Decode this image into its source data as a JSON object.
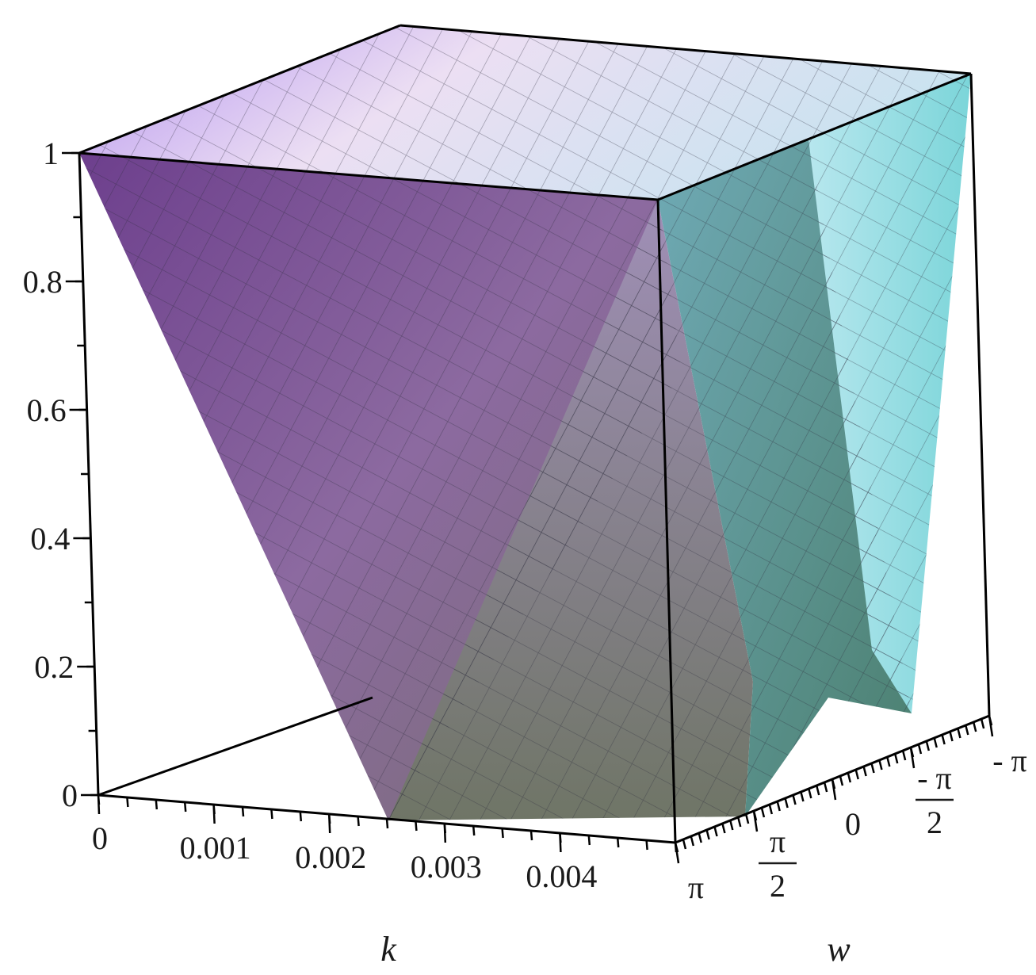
{
  "chart_data": {
    "type": "surface3d",
    "title": "",
    "xlabel": "k",
    "ylabel": "w",
    "zlabel": "",
    "xlim": [
      0,
      0.005
    ],
    "ylim": [
      "π",
      "- π"
    ],
    "zlim": [
      0,
      1
    ],
    "x_ticks": [
      "0",
      "0.001",
      "0.002",
      "0.003",
      "0.004"
    ],
    "y_ticks": [
      {
        "num": "π",
        "den": ""
      },
      {
        "num": "π",
        "den": "2"
      },
      {
        "num": "0",
        "den": ""
      },
      {
        "num": "- π",
        "den": "2"
      },
      {
        "num": "- π",
        "den": ""
      }
    ],
    "z_ticks": [
      "0",
      "0.2",
      "0.4",
      "0.6",
      "0.8",
      "1"
    ],
    "surface": "value is 1 along w = 0 for k ≥ 0 and falls linearly toward 0, forming ridges that reach 1 at k = 0.005 for w = π, π/2, 0, -π/2, -π",
    "colors": {
      "high": "#a98be8",
      "mid": "#9b8ca8",
      "low": "#5e6b57",
      "right": "#7fd2d8"
    }
  }
}
